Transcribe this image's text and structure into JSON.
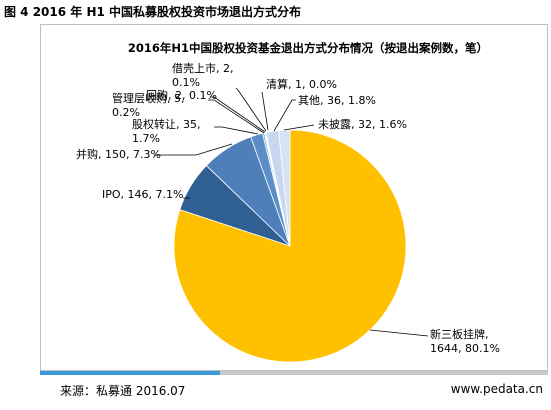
{
  "figure_title": "图 4 2016 年 H1 中国私募股权投资市场退出方式分布",
  "footer": {
    "source": "来源：私募通 2016.07",
    "website": "www.pedata.cn"
  },
  "chart_data": {
    "type": "pie",
    "title": "2016年H1中国股权投资基金退出方式分布情况（按退出案例数，笔）",
    "slices": [
      {
        "name": "新三板挂牌",
        "value": 1644,
        "percent": "80.1%",
        "color": "#ffc000",
        "label_lines": [
          "新三板挂牌,",
          "1644, 80.1%"
        ]
      },
      {
        "name": "IPO",
        "value": 146,
        "percent": "7.1%",
        "color": "#2f5f93",
        "label_lines": [
          "IPO, 146, 7.1%"
        ]
      },
      {
        "name": "并购",
        "value": 150,
        "percent": "7.3%",
        "color": "#4f7fb8",
        "label_lines": [
          "并购, 150, 7.3%"
        ]
      },
      {
        "name": "股权转让",
        "value": 35,
        "percent": "1.7%",
        "color": "#5b8ec8",
        "label_lines": [
          "股权转让, 35,",
          "1.7%"
        ]
      },
      {
        "name": "管理层收购",
        "value": 5,
        "percent": "0.2%",
        "color": "#7ba3d3",
        "label_lines": [
          "管理层收购, 5,",
          "0.2%"
        ]
      },
      {
        "name": "回购",
        "value": 2,
        "percent": "0.1%",
        "color": "#94b6df",
        "label_lines": [
          "回购, 2, 0.1%"
        ]
      },
      {
        "name": "借壳上市",
        "value": 2,
        "percent": "0.1%",
        "color": "#a9c4e6",
        "label_lines": [
          "借壳上市, 2,",
          "0.1%"
        ]
      },
      {
        "name": "清算",
        "value": 1,
        "percent": "0.0%",
        "color": "#bcd0ea",
        "label_lines": [
          "清算, 1, 0.0%"
        ]
      },
      {
        "name": "其他",
        "value": 36,
        "percent": "1.8%",
        "color": "#c6d7ee",
        "label_lines": [
          "其他, 36, 1.8%"
        ]
      },
      {
        "name": "未披露",
        "value": 32,
        "percent": "1.6%",
        "color": "#d7e3f4",
        "label_lines": [
          "未披露, 32, 1.6%"
        ]
      }
    ]
  }
}
